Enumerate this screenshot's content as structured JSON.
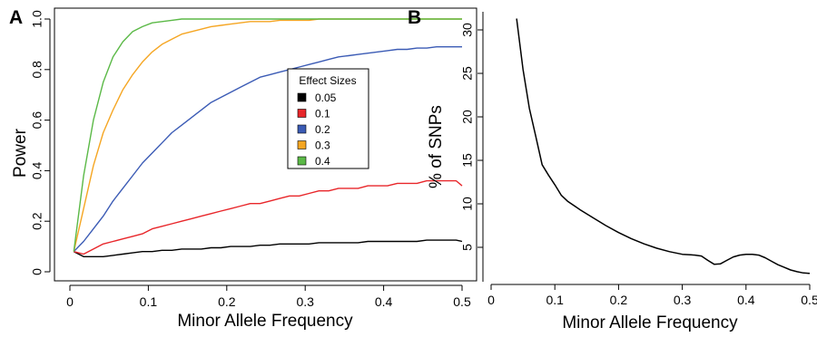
{
  "chart_data": [
    {
      "panel": "A",
      "type": "line",
      "xlabel": "Minor Allele Frequency",
      "ylabel": "Power",
      "xlim": [
        0,
        0.5
      ],
      "ylim": [
        0,
        1
      ],
      "x_ticks": [
        "0",
        "0.1",
        "0.2",
        "0.3",
        "0.4",
        "0.5"
      ],
      "y_ticks": [
        "0",
        "0.2",
        "0.4",
        "0.6",
        "0.8",
        "1.0"
      ],
      "legend": {
        "title": "Effect Sizes",
        "position": "right"
      },
      "x": [
        0.005,
        0.0175,
        0.03,
        0.0425,
        0.055,
        0.0675,
        0.08,
        0.0925,
        0.105,
        0.1175,
        0.13,
        0.1425,
        0.155,
        0.1675,
        0.18,
        0.1925,
        0.205,
        0.2175,
        0.23,
        0.2425,
        0.255,
        0.2675,
        0.28,
        0.2925,
        0.305,
        0.3175,
        0.33,
        0.3425,
        0.355,
        0.3675,
        0.38,
        0.3925,
        0.405,
        0.4175,
        0.43,
        0.4425,
        0.455,
        0.4675,
        0.48,
        0.4925,
        0.5
      ],
      "series": [
        {
          "name": "0.05",
          "color": "#000000",
          "values": [
            0.08,
            0.06,
            0.06,
            0.06,
            0.065,
            0.07,
            0.075,
            0.08,
            0.08,
            0.085,
            0.085,
            0.09,
            0.09,
            0.09,
            0.095,
            0.095,
            0.1,
            0.1,
            0.1,
            0.105,
            0.105,
            0.11,
            0.11,
            0.11,
            0.11,
            0.115,
            0.115,
            0.115,
            0.115,
            0.115,
            0.12,
            0.12,
            0.12,
            0.12,
            0.12,
            0.12,
            0.125,
            0.125,
            0.125,
            0.125,
            0.12
          ]
        },
        {
          "name": "0.1",
          "color": "#e8262a",
          "values": [
            0.08,
            0.07,
            0.09,
            0.11,
            0.12,
            0.13,
            0.14,
            0.15,
            0.17,
            0.18,
            0.19,
            0.2,
            0.21,
            0.22,
            0.23,
            0.24,
            0.25,
            0.26,
            0.27,
            0.27,
            0.28,
            0.29,
            0.3,
            0.3,
            0.31,
            0.32,
            0.32,
            0.33,
            0.33,
            0.33,
            0.34,
            0.34,
            0.34,
            0.35,
            0.35,
            0.35,
            0.36,
            0.36,
            0.36,
            0.36,
            0.34
          ]
        },
        {
          "name": "0.2",
          "color": "#3b5bb5",
          "values": [
            0.08,
            0.12,
            0.17,
            0.22,
            0.28,
            0.33,
            0.38,
            0.43,
            0.47,
            0.51,
            0.55,
            0.58,
            0.61,
            0.64,
            0.67,
            0.69,
            0.71,
            0.73,
            0.75,
            0.77,
            0.78,
            0.79,
            0.8,
            0.81,
            0.82,
            0.83,
            0.84,
            0.85,
            0.855,
            0.86,
            0.865,
            0.87,
            0.875,
            0.88,
            0.88,
            0.885,
            0.885,
            0.89,
            0.89,
            0.89,
            0.89
          ]
        },
        {
          "name": "0.3",
          "color": "#f5a623",
          "values": [
            0.08,
            0.25,
            0.42,
            0.55,
            0.64,
            0.72,
            0.78,
            0.83,
            0.87,
            0.9,
            0.92,
            0.94,
            0.95,
            0.96,
            0.97,
            0.975,
            0.98,
            0.985,
            0.99,
            0.99,
            0.99,
            0.995,
            0.995,
            0.995,
            0.995,
            1.0,
            1.0,
            1.0,
            1.0,
            1.0,
            1.0,
            1.0,
            1.0,
            1.0,
            1.0,
            1.0,
            1.0,
            1.0,
            1.0,
            1.0,
            1.0
          ]
        },
        {
          "name": "0.4",
          "color": "#5bb947",
          "values": [
            0.08,
            0.38,
            0.6,
            0.75,
            0.85,
            0.91,
            0.95,
            0.97,
            0.985,
            0.99,
            0.995,
            1.0,
            1.0,
            1.0,
            1.0,
            1.0,
            1.0,
            1.0,
            1.0,
            1.0,
            1.0,
            1.0,
            1.0,
            1.0,
            1.0,
            1.0,
            1.0,
            1.0,
            1.0,
            1.0,
            1.0,
            1.0,
            1.0,
            1.0,
            1.0,
            1.0,
            1.0,
            1.0,
            1.0,
            1.0,
            1.0
          ]
        }
      ]
    },
    {
      "panel": "B",
      "type": "line",
      "xlabel": "Minor Allele Frequency",
      "ylabel": "% of SNPs",
      "xlim": [
        0,
        0.5
      ],
      "ylim": [
        2,
        32
      ],
      "x_ticks": [
        "0",
        "0.1",
        "0.2",
        "0.3",
        "0.4",
        "0.5"
      ],
      "y_ticks": [
        "5",
        "10",
        "15",
        "20",
        "25",
        "30"
      ],
      "series": [
        {
          "color": "#000000",
          "x": [
            0.04,
            0.05,
            0.06,
            0.07,
            0.08,
            0.09,
            0.1,
            0.11,
            0.12,
            0.14,
            0.16,
            0.18,
            0.2,
            0.22,
            0.24,
            0.26,
            0.28,
            0.3,
            0.32,
            0.33,
            0.34,
            0.35,
            0.36,
            0.37,
            0.38,
            0.39,
            0.4,
            0.41,
            0.42,
            0.43,
            0.44,
            0.45,
            0.46,
            0.47,
            0.48,
            0.49,
            0.5
          ],
          "values": [
            31.3,
            25.5,
            21.0,
            17.8,
            14.5,
            13.3,
            12.2,
            11.0,
            10.3,
            9.3,
            8.4,
            7.5,
            6.7,
            6.0,
            5.4,
            4.9,
            4.5,
            4.2,
            4.1,
            4.0,
            3.5,
            3.05,
            3.1,
            3.5,
            3.9,
            4.1,
            4.2,
            4.2,
            4.1,
            3.8,
            3.4,
            3.0,
            2.7,
            2.4,
            2.2,
            2.05,
            2.0
          ]
        }
      ]
    }
  ]
}
